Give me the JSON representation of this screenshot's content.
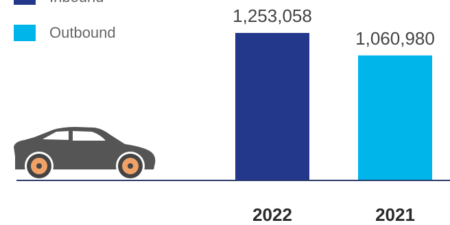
{
  "chart_data": {
    "type": "bar",
    "categories": [
      "2022",
      "2021"
    ],
    "values": [
      1253058,
      1060980
    ],
    "value_labels": [
      "1,253,058",
      "1,060,980"
    ],
    "legend": [
      {
        "name": "Inbound",
        "color": "#23388a"
      },
      {
        "name": "Outbound",
        "color": "#00b5ea"
      }
    ],
    "bar_colors": [
      "#23388a",
      "#00b5ea"
    ],
    "ylim": [
      0,
      1500000
    ],
    "grid": false,
    "legend_position": "top-left",
    "xlabel": "",
    "ylabel": ""
  },
  "illustration": {
    "icon": "car-icon",
    "body_color": "#555555",
    "wheel_color": "#f0a165"
  }
}
